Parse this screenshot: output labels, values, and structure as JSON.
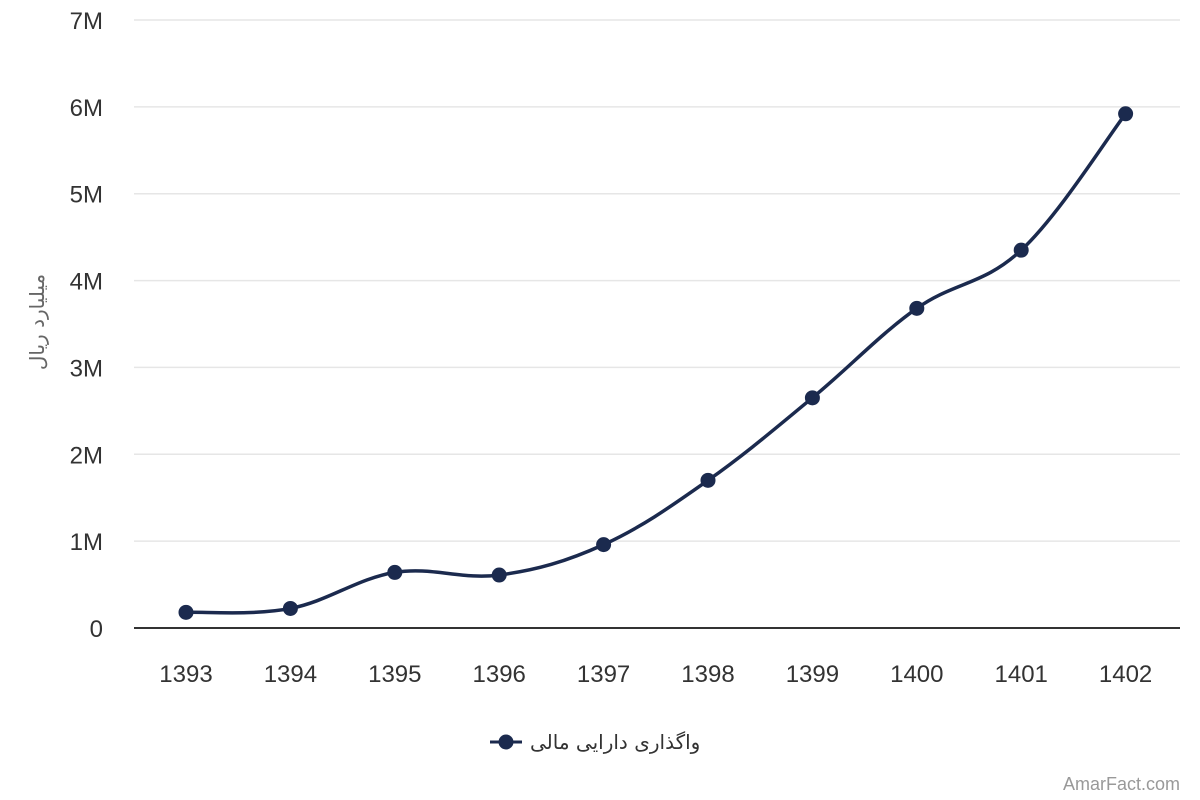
{
  "chart_data": {
    "type": "line",
    "categories": [
      "1393",
      "1394",
      "1395",
      "1396",
      "1397",
      "1398",
      "1399",
      "1400",
      "1401",
      "1402"
    ],
    "series": [
      {
        "name": "واگذاری دارایی مالی",
        "color": "#1b2a4e",
        "values": [
          180000,
          225000,
          640000,
          610000,
          960000,
          1700000,
          2650000,
          3680000,
          4350000,
          5920000
        ]
      }
    ],
    "ylabel": "میلیارد ریال",
    "ylim": [
      0,
      7000000
    ],
    "yticks": [
      {
        "value": 0,
        "label": "0"
      },
      {
        "value": 1000000,
        "label": "1M"
      },
      {
        "value": 2000000,
        "label": "2M"
      },
      {
        "value": 3000000,
        "label": "3M"
      },
      {
        "value": 4000000,
        "label": "4M"
      },
      {
        "value": 5000000,
        "label": "5M"
      },
      {
        "value": 6000000,
        "label": "6M"
      },
      {
        "value": 7000000,
        "label": "7M"
      }
    ],
    "grid": true,
    "legend": "bottom-center"
  },
  "credit": "AmarFact.com",
  "colors": {
    "series": "#1b2a4e",
    "grid": "#e6e6e6",
    "axis": "#333333"
  }
}
